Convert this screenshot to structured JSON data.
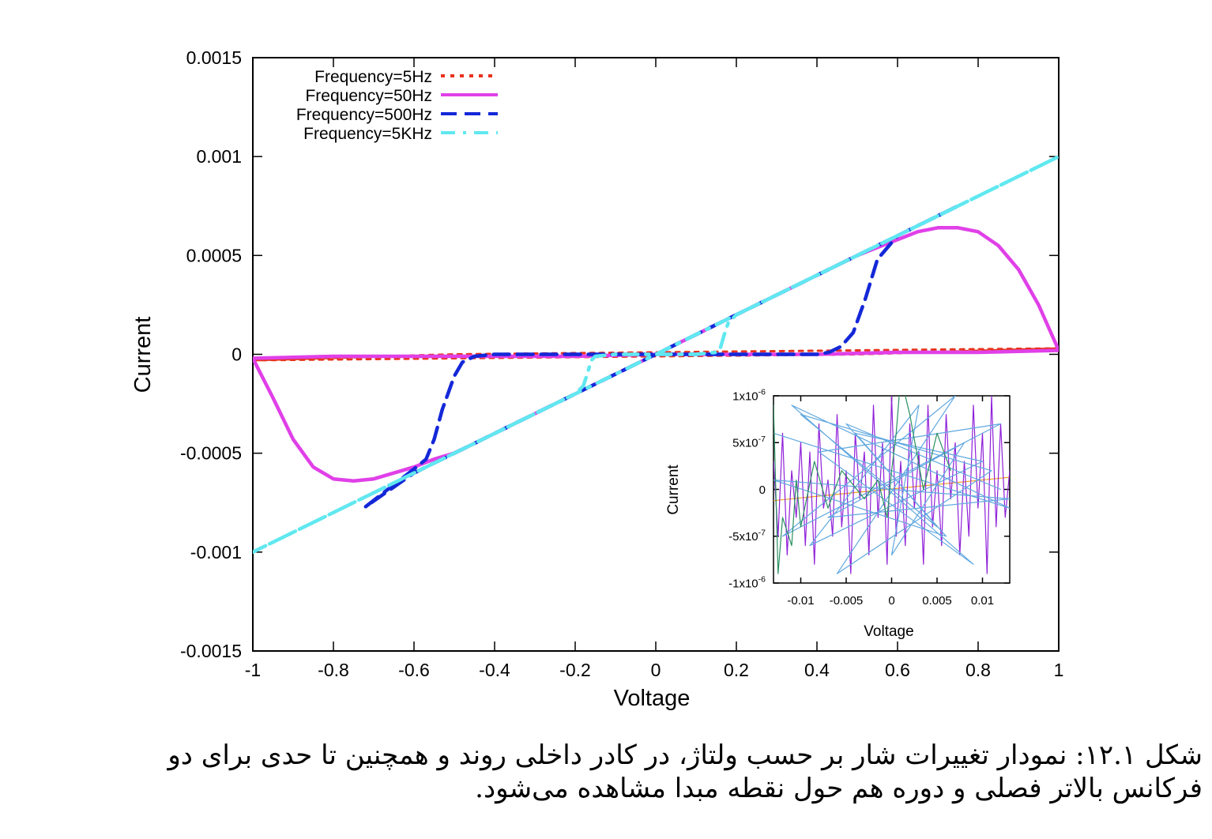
{
  "chart_data": [
    {
      "type": "line",
      "xlabel": "Voltage",
      "ylabel": "Current",
      "xlim": [
        -1,
        1
      ],
      "ylim": [
        -0.0015,
        0.0015
      ],
      "xticks": [
        "-1",
        "-0.8",
        "-0.6",
        "-0.4",
        "-0.2",
        "0",
        "0.2",
        "0.4",
        "0.6",
        "0.8",
        "1"
      ],
      "yticks": [
        "-0.0015",
        "-0.001",
        "-0.0005",
        "0",
        "0.0005",
        "0.001",
        "0.0015"
      ],
      "legend_position": "top-left",
      "series": [
        {
          "name": "Frequency=5Hz",
          "color": "#e8321e",
          "style": "dotted",
          "x": [
            -1,
            -0.5,
            0,
            0.5,
            1,
            0.5,
            0,
            -0.5,
            -1
          ],
          "y": [
            -3e-05,
            -2e-05,
            -1e-05,
            0.0,
            3e-05,
            2e-05,
            1e-05,
            0.0,
            -3e-05
          ]
        },
        {
          "name": "Frequency=50Hz",
          "color": "#e040e8",
          "style": "solid",
          "x": [
            -1,
            -0.95,
            -0.9,
            -0.85,
            -0.8,
            -0.75,
            -0.7,
            -0.65,
            -0.6,
            -0.55,
            -0.5,
            -0.4,
            -0.3,
            -0.2,
            -0.1,
            0,
            0.1,
            0.2,
            0.3,
            0.4,
            0.5,
            0.6,
            0.65,
            0.7,
            0.75,
            0.8,
            0.85,
            0.9,
            0.95,
            1,
            0.8,
            0.6,
            0.4,
            0.2,
            0,
            -0.2,
            -0.4,
            -0.6,
            -0.8,
            -1
          ],
          "y": [
            -2e-05,
            -0.00022,
            -0.00043,
            -0.00057,
            -0.00063,
            -0.00064,
            -0.00063,
            -0.0006,
            -0.00057,
            -0.00053,
            -0.0005,
            -0.0004,
            -0.0003,
            -0.0002,
            -0.0001,
            0.0,
            0.0001,
            0.0002,
            0.0003,
            0.0004,
            0.0005,
            0.00058,
            0.00062,
            0.00064,
            0.00064,
            0.00062,
            0.00055,
            0.00043,
            0.00025,
            2e-05,
            1e-05,
            1e-05,
            0.0,
            0.0,
            0.0,
            -1e-05,
            -1e-05,
            -1e-05,
            -1e-05,
            -2e-05
          ]
        },
        {
          "name": "Frequency=500Hz",
          "color": "#1428d8",
          "style": "dashed",
          "x": [
            -0.72,
            -0.6,
            -0.57,
            -0.55,
            -0.53,
            -0.5,
            -0.48,
            -0.45,
            -0.4,
            -0.2,
            0,
            0.2,
            0.4,
            0.43,
            0.46,
            0.49,
            0.52,
            0.55,
            0.6,
            0.75,
            0.6,
            0.4,
            0.2,
            0,
            -0.2,
            -0.4,
            -0.6,
            -0.72
          ],
          "y": [
            -0.00077,
            -0.00058,
            -0.00053,
            -0.00043,
            -0.00028,
            -0.00011,
            -4e-05,
            -1e-05,
            0.0,
            0.0,
            0.0,
            0.0,
            0.0,
            1e-05,
            4e-05,
            0.00011,
            0.00028,
            0.00048,
            0.0006,
            0.00075,
            0.0006,
            0.0004,
            0.0002,
            0.0,
            -0.0002,
            -0.0004,
            -0.0006,
            -0.00077
          ]
        },
        {
          "name": "Frequency=5KHz",
          "color": "#60e8f0",
          "style": "dash-dot",
          "x": [
            -1,
            -0.6,
            -0.2,
            -0.18,
            -0.17,
            -0.16,
            -0.15,
            -0.1,
            0,
            0.1,
            0.15,
            0.16,
            0.17,
            0.18,
            0.2,
            0.6,
            1,
            0.6,
            0.2,
            0,
            -0.2,
            -0.6,
            -1
          ],
          "y": [
            -0.001,
            -0.0006,
            -0.0002,
            -0.00016,
            -0.0001,
            -3e-05,
            -1e-05,
            0.0,
            0.0,
            0.0,
            1e-05,
            3e-05,
            0.0001,
            0.00016,
            0.0002,
            0.0006,
            0.001,
            0.0006,
            0.0002,
            0.0,
            -0.0002,
            -0.0006,
            -0.001
          ]
        }
      ]
    },
    {
      "type": "line",
      "xlabel": "Voltage",
      "ylabel": "Current",
      "xlim": [
        -0.013,
        0.013
      ],
      "ylim": [
        -1e-06,
        1e-06
      ],
      "xticks": [
        "-0.01",
        "-0.005",
        "0",
        "0.005",
        "0.01"
      ],
      "yticks": [
        "-1x10-6",
        "-5x10-7",
        "0",
        "5x10-7",
        "1x10-6"
      ],
      "series": [
        {
          "color": "#f0a020",
          "x": [
            -0.013,
            0.013
          ],
          "y": [
            -1.2e-07,
            1.3e-07
          ]
        },
        {
          "color": "#9020d8",
          "x": [
            -0.013,
            -0.0125,
            -0.012,
            -0.0115,
            -0.011,
            -0.0105,
            -0.01,
            -0.0095,
            -0.009,
            -0.0085,
            -0.008,
            -0.0075,
            -0.007,
            -0.0065,
            -0.006,
            -0.0055,
            -0.005,
            -0.0045,
            -0.004,
            -0.0035,
            -0.003,
            -0.0025,
            -0.002,
            -0.0015,
            -0.001,
            -0.0005,
            0,
            0.0005,
            0.001,
            0.0015,
            0.002,
            0.0025,
            0.003,
            0.0035,
            0.004,
            0.0045,
            0.005,
            0.0055,
            0.006,
            0.0065,
            0.007,
            0.0075,
            0.008,
            0.0085,
            0.009,
            0.0095,
            0.01,
            0.0105,
            0.011,
            0.0115,
            0.012,
            0.0125,
            0.013
          ],
          "y": [
            3e-07,
            -5e-07,
            6e-07,
            -7e-07,
            2e-07,
            -3e-07,
            5e-07,
            -6e-07,
            4e-07,
            -8e-07,
            7e-07,
            -2e-07,
            1e-07,
            -5e-07,
            8e-07,
            -4e-07,
            2e-07,
            -9e-07,
            6e-07,
            -1e-07,
            4e-07,
            -7e-07,
            9e-07,
            -3e-07,
            5e-07,
            -8e-07,
            1e-06,
            -5e-07,
            3e-07,
            -6e-07,
            7e-07,
            -2e-07,
            4e-07,
            -8e-07,
            9e-07,
            -4e-07,
            2e-07,
            -6e-07,
            8e-07,
            -1e-07,
            5e-07,
            -7e-07,
            3e-07,
            -5e-07,
            9e-07,
            -2e-07,
            6e-07,
            -9e-07,
            1e-06,
            -4e-07,
            7e-07,
            -3e-07,
            2e-07
          ]
        },
        {
          "color": "#60a8e0",
          "x": [
            -0.013,
            0.013,
            -0.011,
            0.009,
            -0.008,
            0.012,
            -0.012,
            0.007,
            -0.006,
            0.011,
            -0.01,
            0.005,
            -0.004,
            0.01,
            -0.009,
            0.003,
            0,
            0.008,
            -0.007,
            0.013,
            -0.013,
            0.006,
            -0.005,
            0.012
          ],
          "y": [
            6e-07,
            -2e-07,
            9e-07,
            -8e-07,
            4e-07,
            7e-07,
            -5e-07,
            1e-06,
            -9e-07,
            2e-07,
            8e-07,
            -4e-07,
            6e-07,
            3e-07,
            -6e-07,
            9e-07,
            -7e-07,
            5e-07,
            -3e-07,
            -1e-07,
            1e-07,
            -5e-07,
            7e-07,
            0
          ]
        },
        {
          "color": "#2a9060",
          "x": [
            -0.013,
            -0.0125,
            -0.012,
            -0.011,
            -0.0105,
            -0.01,
            -0.0085,
            -0.007,
            -0.0055,
            -0.003,
            -0.0015,
            -0.0005,
            0,
            0.0005,
            0.001,
            0.002,
            0.0035,
            0.005,
            0.0065
          ],
          "y": [
            9e-07,
            -9e-07,
            -3e-07,
            -6e-07,
            1e-07,
            -4e-07,
            3e-07,
            -2e-07,
            2e-07,
            -1e-07,
            1e-07,
            -3e-07,
            2e-07,
            6e-07,
            1.2e-06,
            8e-07,
            0,
            6e-07,
            2e-07
          ]
        }
      ]
    }
  ],
  "caption": {
    "line1": "شکل ۱۲.۱: نمودار تغییرات شار بر حسب ولتاژ، در کادر داخلی روند و همچنین تا حدی برای دو",
    "line2": "فرکانس بالاتر فصلی و دوره هم حول نقطه مبدا مشاهده می‌شود."
  }
}
